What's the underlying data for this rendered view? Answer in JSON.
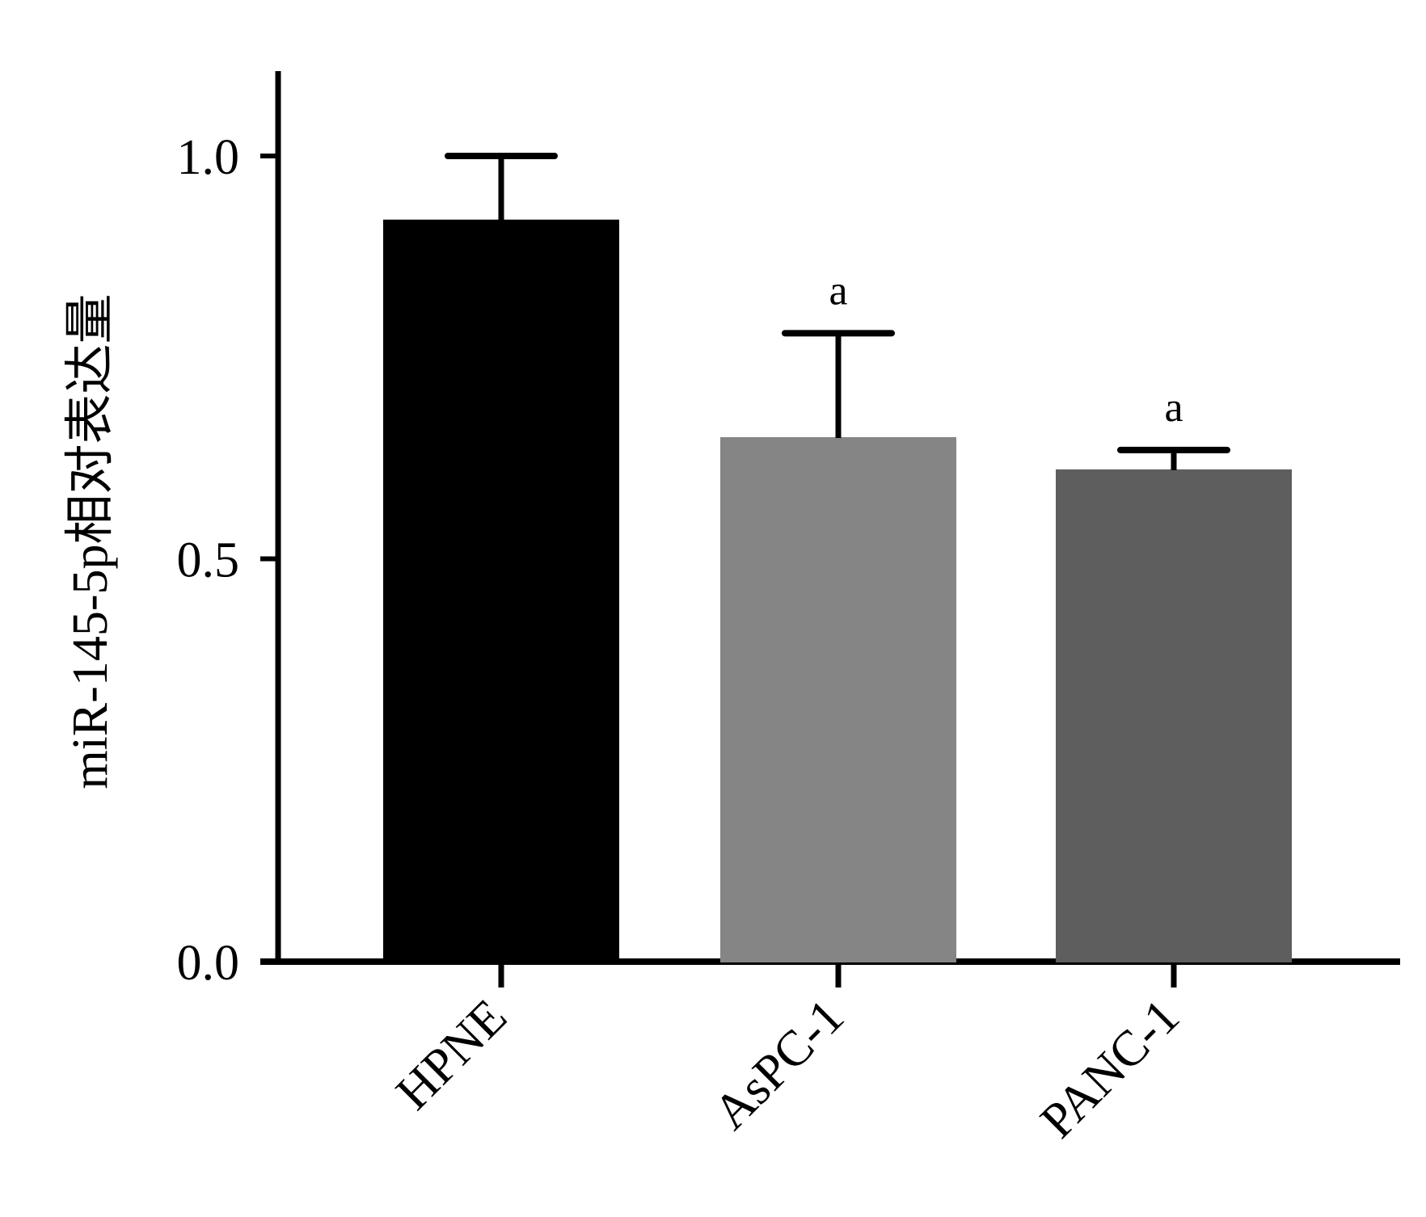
{
  "chart_data": {
    "type": "bar",
    "ylabel": "miR-145-5p相对表达量",
    "categories": [
      "HPNE",
      "AsPC-1",
      "PANC-1"
    ],
    "values": [
      0.92,
      0.65,
      0.61
    ],
    "errors": [
      0.08,
      0.13,
      0.025
    ],
    "annotations": [
      "",
      "a",
      "a"
    ],
    "bar_colors": [
      "#000000",
      "#858585",
      "#5e5e5e"
    ],
    "ylim": [
      0,
      1.1
    ],
    "yticks": [
      0.0,
      0.5,
      1.0
    ],
    "ytick_labels": [
      "0.0",
      "0.5",
      "1.0"
    ],
    "grid": false,
    "legend": "none"
  }
}
